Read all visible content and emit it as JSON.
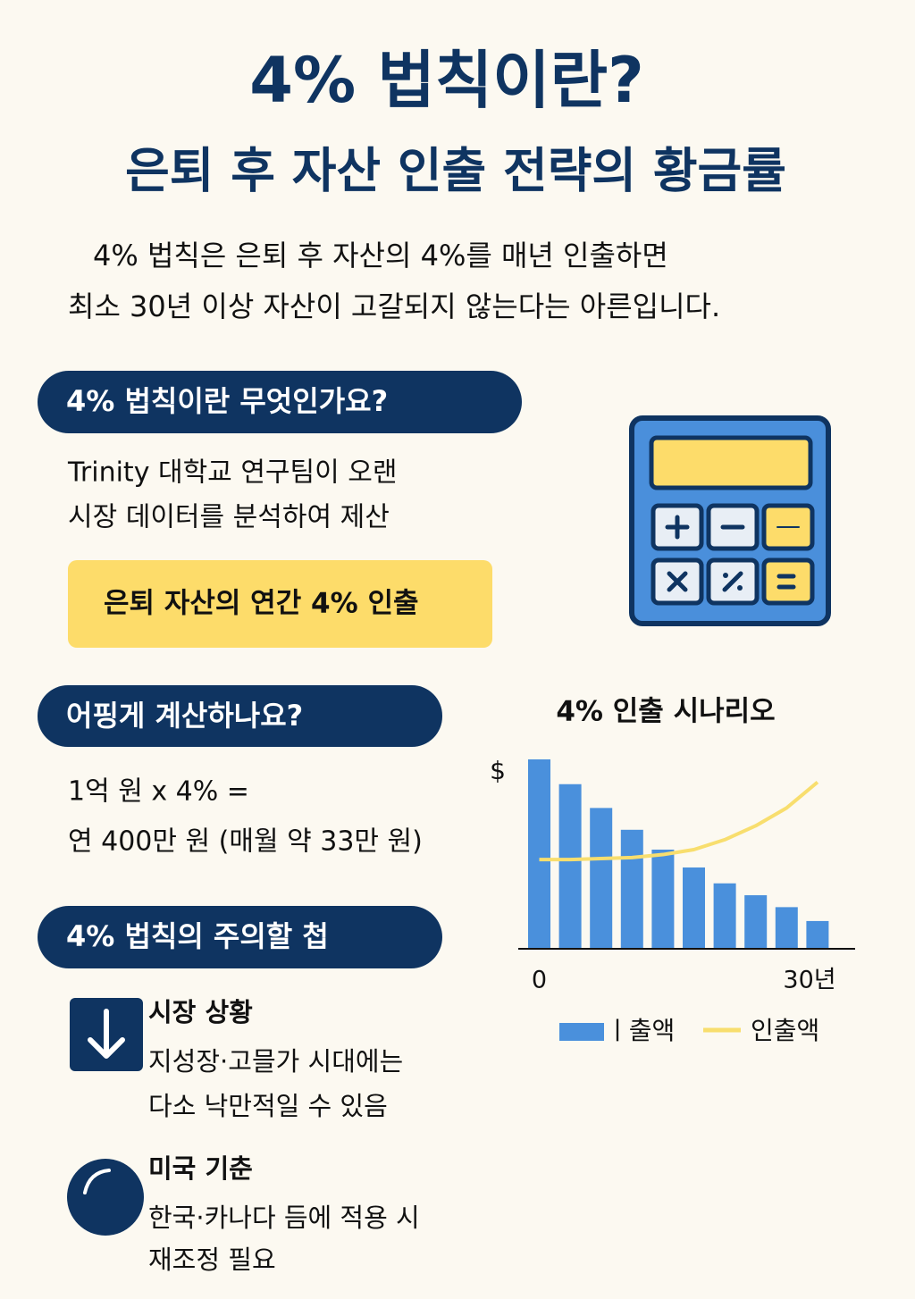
{
  "header": {
    "title": "4% 법칙이란?",
    "subtitle": "은퇴 후 자산 인출 전략의 황금률"
  },
  "intro": [
    "4% 법칙은 은퇴 후 자산의 4%를 매년 인출하면",
    "최소 30년 이상 자산이 고갈되지 않는다는 아른입니다."
  ],
  "sections": [
    {
      "heading": "4% 법칙이란 무엇인가요?",
      "lines": [
        "Trinity 대학교 연구팀이 오랜",
        "시장 데이터를 분석하여 제산"
      ],
      "highlight": "은퇴 자산의 연간 4% 인출"
    },
    {
      "heading": "어핑게 계산하나요?",
      "lines": [
        "1억 원 x 4% =",
        "연 400만 원 (매월 약 33만 원)"
      ]
    },
    {
      "heading": "4% 법칙의 주의할 첩",
      "items": [
        {
          "title": "시장 상황",
          "lines": [
            "지성장·고믈가 시대에는",
            "다소 낙만적일 수 있음"
          ]
        },
        {
          "title": "미국 기춘",
          "lines": [
            "한국·카나다 듬에 적용 시",
            "재조정 필요"
          ]
        }
      ]
    }
  ],
  "chart_data": {
    "type": "bar",
    "title": "4% 인출 시나리오",
    "y_label": "$",
    "categories": [
      "0",
      null,
      null,
      null,
      null,
      null,
      null,
      null,
      null,
      "30년"
    ],
    "ylim": [
      0,
      100
    ],
    "series": [
      {
        "name": "ㅣ출액",
        "type": "bar",
        "color": "#4a90dc",
        "values": [
          95.5,
          83,
          71,
          60,
          50,
          41,
          33,
          27,
          21,
          14
        ]
      },
      {
        "name": "인출액",
        "type": "line",
        "color": "#f8de6e",
        "values": [
          45,
          45,
          45.5,
          46,
          47.5,
          50,
          55,
          62,
          71,
          84
        ]
      }
    ]
  }
}
